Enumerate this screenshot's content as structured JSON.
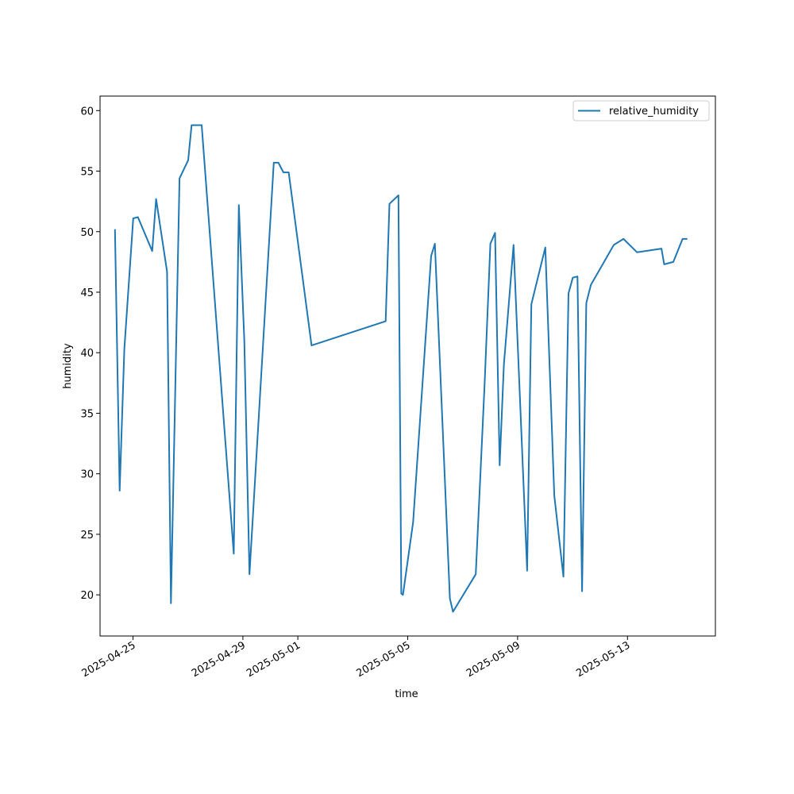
{
  "chart_data": {
    "type": "line",
    "title": "",
    "xlabel": "time",
    "ylabel": "humidity",
    "xlim": [
      "2025-04-23T19:12",
      "2025-05-16T04:48"
    ],
    "ylim": [
      16.6,
      61.2
    ],
    "xticks": [
      {
        "value": "2025-04-25",
        "label": "2025-04-25"
      },
      {
        "value": "2025-04-29",
        "label": "2025-04-29"
      },
      {
        "value": "2025-05-01",
        "label": "2025-05-01"
      },
      {
        "value": "2025-05-05",
        "label": "2025-05-05"
      },
      {
        "value": "2025-05-09",
        "label": "2025-05-09"
      },
      {
        "value": "2025-05-13",
        "label": "2025-05-13"
      }
    ],
    "yticks": [
      20,
      25,
      30,
      35,
      40,
      45,
      50,
      55,
      60
    ],
    "legend": {
      "position": "top-right"
    },
    "grid": false,
    "series": [
      {
        "name": "relative_humidity",
        "color": "#1f77b4",
        "x": [
          "2025-04-24T08:13",
          "2025-04-24T12:19",
          "2025-04-24T16:24",
          "2025-04-25T00:11",
          "2025-04-25T04:17",
          "2025-04-25T16:48",
          "2025-04-25T20:12",
          "2025-04-26T05:43",
          "2025-04-26T09:09",
          "2025-04-26T16:37",
          "2025-04-27T00:11",
          "2025-04-27T03:09",
          "2025-04-27T12:00",
          "2025-04-28T16:01",
          "2025-04-28T20:27",
          "2025-04-29T01:16",
          "2025-04-29T05:43",
          "2025-04-30T02:57",
          "2025-04-30T07:01",
          "2025-04-30T11:27",
          "2025-04-30T16:01",
          "2025-05-01T12:00",
          "2025-05-04T04:44",
          "2025-05-04T08:02",
          "2025-05-04T15:53",
          "2025-05-04T18:24",
          "2025-05-04T19:52",
          "2025-05-05T04:44",
          "2025-05-05T20:27",
          "2025-05-05T23:45",
          "2025-05-06T12:48",
          "2025-05-06T15:32",
          "2025-05-07T11:27",
          "2025-05-07T19:12",
          "2025-05-08T00:11",
          "2025-05-08T04:17",
          "2025-05-08T08:21",
          "2025-05-08T12:00",
          "2025-05-08T20:27",
          "2025-05-09T08:21",
          "2025-05-09T12:00",
          "2025-05-10T00:11",
          "2025-05-10T08:02",
          "2025-05-10T16:01",
          "2025-05-10T20:27",
          "2025-05-11T00:11",
          "2025-05-11T04:17",
          "2025-05-11T08:21",
          "2025-05-11T12:00",
          "2025-05-11T16:01",
          "2025-05-12T12:00",
          "2025-05-12T20:27",
          "2025-05-13T08:21",
          "2025-05-14T05:43",
          "2025-05-14T08:02",
          "2025-05-14T16:01",
          "2025-05-15T00:11",
          "2025-05-15T04:17"
        ],
        "y": [
          50.2,
          28.6,
          40.3,
          51.1,
          51.2,
          48.4,
          52.7,
          46.7,
          19.3,
          54.4,
          55.9,
          58.8,
          58.8,
          23.4,
          52.2,
          41.0,
          21.7,
          55.7,
          55.7,
          54.9,
          54.9,
          40.6,
          42.6,
          52.3,
          53.0,
          20.1,
          20.0,
          26.0,
          48.0,
          49.0,
          19.7,
          18.6,
          21.7,
          37.5,
          49.0,
          49.9,
          30.7,
          39.0,
          48.9,
          22.0,
          44.0,
          48.7,
          28.2,
          21.5,
          44.9,
          46.2,
          46.3,
          20.3,
          44.1,
          45.6,
          48.9,
          49.4,
          48.3,
          48.6,
          47.3,
          47.5,
          49.4,
          49.4
        ]
      }
    ]
  }
}
